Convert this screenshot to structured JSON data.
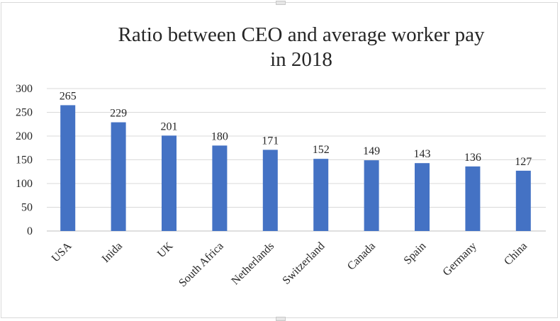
{
  "chart_data": {
    "type": "bar",
    "title": [
      "Ratio between CEO and average worker pay",
      "in 2018"
    ],
    "categories": [
      "USA",
      "Inida",
      "UK",
      "South Africa",
      "Netherlands",
      "Switzerland",
      "Canada",
      "Spain",
      "Germany",
      "China"
    ],
    "values": [
      265,
      229,
      201,
      180,
      171,
      152,
      149,
      143,
      136,
      127
    ],
    "data_labels": [
      "265",
      "229",
      "201",
      "180",
      "171",
      "152",
      "149",
      "143",
      "136",
      "127"
    ],
    "ylim": [
      0,
      300
    ],
    "yticks": [
      0,
      50,
      100,
      150,
      200,
      250,
      300
    ],
    "ytick_labels": [
      "0",
      "50",
      "100",
      "150",
      "200",
      "250",
      "300"
    ],
    "grid": true,
    "legend": "none",
    "bar_color": "#4472c4",
    "grid_color": "#d9d9d9"
  }
}
